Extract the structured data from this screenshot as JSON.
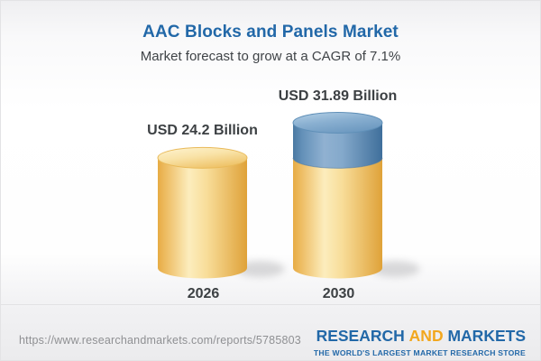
{
  "header": {
    "title": "AAC Blocks and Panels Market",
    "subtitle": "Market forecast to grow at a CAGR of 7.1%"
  },
  "chart_data": {
    "type": "bar",
    "variant": "3d-cylinder",
    "title": "AAC Blocks and Panels Market",
    "subtitle": "Market forecast to grow at a CAGR of 7.1%",
    "categories": [
      "2026",
      "2030"
    ],
    "values": [
      24.2,
      31.89
    ],
    "value_labels": [
      "USD 24.2 Billion",
      "USD 31.89 Billion"
    ],
    "units": "USD Billion",
    "ylim": [
      0,
      31.89
    ],
    "grid": false,
    "legend": "none",
    "cagr_percent": 7.1,
    "colors": {
      "base_segment": "#F5CE7E",
      "growth_segment": "#7FA8CD",
      "title_text": "#2268A8",
      "label_text": "#3C4043"
    },
    "notes": "2030 cylinder is yellow up to the 2026 value (24.2) with the growth increment to 31.89 shown in blue on top"
  },
  "footer": {
    "url": "https://www.researchandmarkets.com/reports/5785803",
    "logo": {
      "part1": "RESEARCH",
      "part2": "AND",
      "part3": "MARKETS",
      "tagline": "THE WORLD'S LARGEST MARKET RESEARCH STORE"
    }
  }
}
